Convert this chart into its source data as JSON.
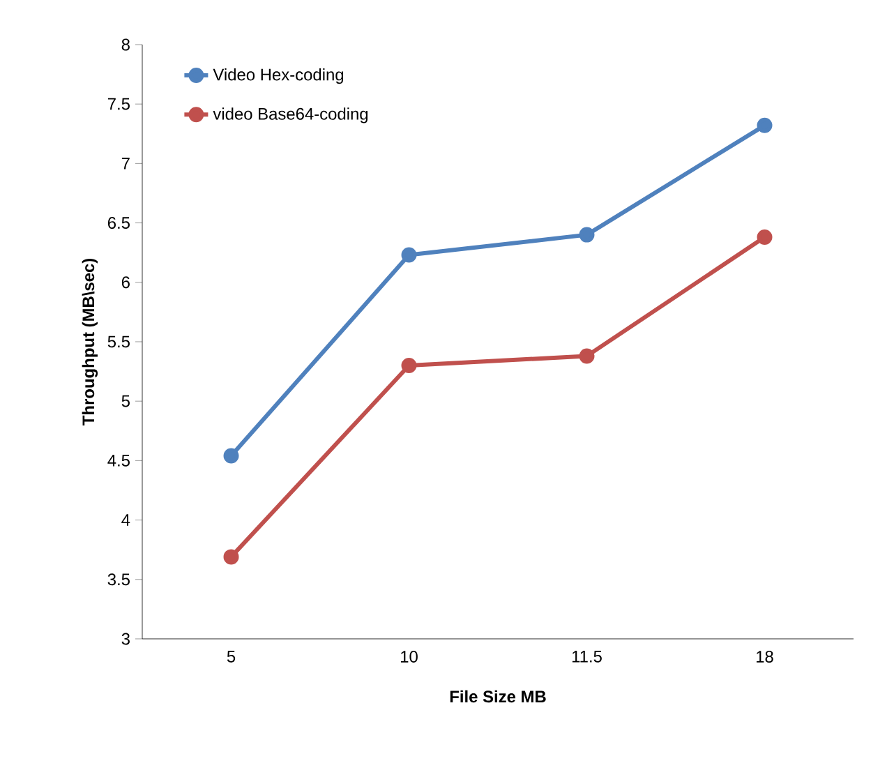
{
  "chart_data": {
    "type": "line",
    "xlabel": "File Size MB",
    "ylabel": "Throughput (MB\\sec)",
    "categories": [
      "5",
      "10",
      "11.5",
      "18"
    ],
    "series": [
      {
        "name": "Video Hex-coding",
        "color": "#4f81bd",
        "values": [
          4.54,
          6.23,
          6.4,
          7.32
        ]
      },
      {
        "name": "video Base64-coding",
        "color": "#c0504d",
        "values": [
          3.69,
          5.3,
          5.38,
          6.38
        ]
      }
    ],
    "ylim": [
      3,
      8
    ],
    "yticks": [
      3,
      3.5,
      4,
      4.5,
      5,
      5.5,
      6,
      6.5,
      7,
      7.5,
      8
    ],
    "grid": false,
    "legend": "top left",
    "marker": "circle",
    "line_style": "solid"
  }
}
